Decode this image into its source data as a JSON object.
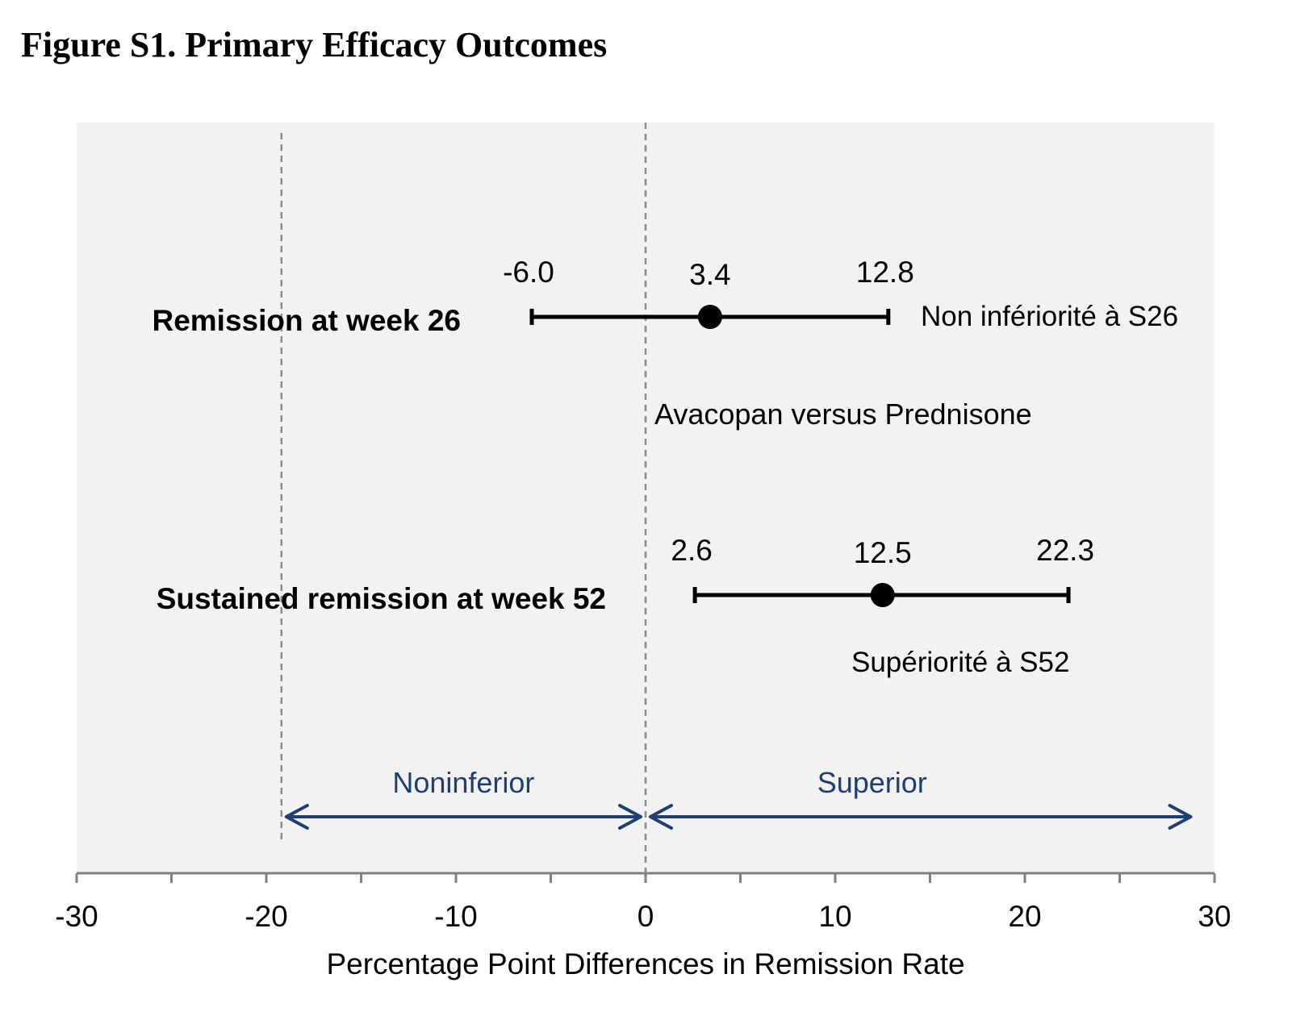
{
  "figure": {
    "title": "Figure S1. Primary Efficacy Outcomes"
  },
  "chart_data": {
    "type": "scatter",
    "subtype": "forest-plot",
    "xlabel": "Percentage Point Differences in Remission Rate",
    "xlim": [
      -30,
      30
    ],
    "xticks": [
      -30,
      -20,
      -10,
      0,
      10,
      20,
      30
    ],
    "xtick_labels": [
      "-30",
      "-20",
      "-10",
      "0",
      "10",
      "20",
      "30"
    ],
    "grid": false,
    "comparison_label": "Avacopan versus Prednisone",
    "rows": [
      {
        "label": "Remission at week 26",
        "estimate": 3.4,
        "lower": -6.0,
        "upper": 12.8,
        "estimate_label": "3.4",
        "lower_label": "-6.0",
        "upper_label": "12.8",
        "annotation": "Non infériorité à S26"
      },
      {
        "label": "Sustained remission at week 52",
        "estimate": 12.5,
        "lower": 2.6,
        "upper": 22.3,
        "estimate_label": "12.5",
        "lower_label": "2.6",
        "upper_label": "22.3",
        "annotation": "Supériorité à S52"
      }
    ],
    "reference_lines": [
      {
        "x": -19.2,
        "style": "dashed",
        "meaning": "noninferiority margin"
      },
      {
        "x": 0,
        "style": "dashed",
        "meaning": "no difference"
      }
    ],
    "regions": [
      {
        "label": "Noninferior",
        "from": -19.2,
        "to": 0
      },
      {
        "label": "Superior",
        "from": 0,
        "to": 29
      }
    ],
    "colors": {
      "plot_background": "#f2f2f2",
      "points": "#000000",
      "region_arrows": "#1f3f72",
      "reference_lines": "#8c8c8c",
      "axis": "#808080"
    }
  }
}
